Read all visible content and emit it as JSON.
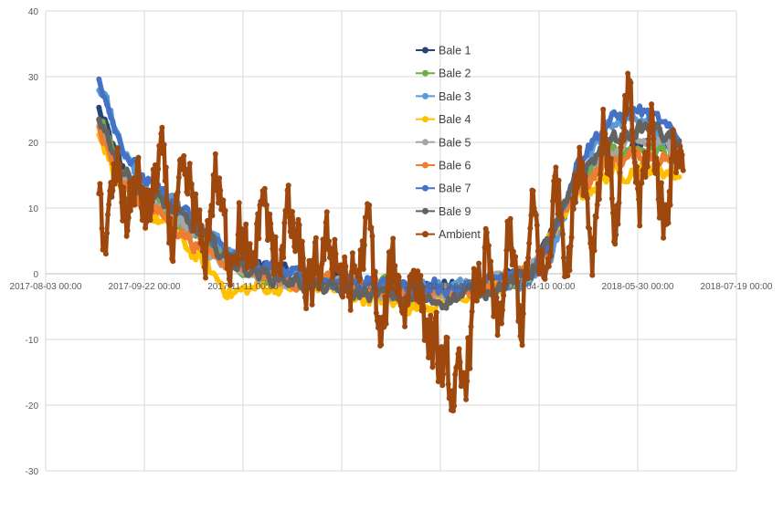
{
  "chart_data": {
    "type": "line",
    "title": "",
    "xlabel": "",
    "ylabel": "",
    "ylim": [
      -30,
      40
    ],
    "y_ticks": [
      40,
      30,
      20,
      10,
      0,
      -10,
      -20,
      -30
    ],
    "x_tick_labels": [
      "2017-08-03 00:00",
      "2017-09-22 00:00",
      "2017-11-11 00:00",
      "2017-12-31 00:00",
      "2018-02-19 00:00",
      "2018-04-10 00:00",
      "2018-05-30 00:00",
      "2018-07-19 00:00"
    ],
    "x_range": [
      "2017-08-03",
      "2018-07-19"
    ],
    "grid": true,
    "legend_position": "center-top",
    "series": [
      {
        "name": "Bale 1",
        "color": "#264478",
        "x": [
          "2017-08-30",
          "2017-09-05",
          "2017-09-10",
          "2017-09-20",
          "2017-10-05",
          "2017-10-20",
          "2017-11-05",
          "2017-11-20",
          "2017-12-05",
          "2017-12-20",
          "2018-01-05",
          "2018-01-20",
          "2018-02-05",
          "2018-02-20",
          "2018-03-05",
          "2018-03-20",
          "2018-04-05",
          "2018-04-12",
          "2018-04-20",
          "2018-05-01",
          "2018-05-15",
          "2018-05-30",
          "2018-06-10",
          "2018-06-20"
        ],
        "values": [
          25,
          20,
          16,
          13,
          10,
          6,
          2,
          1,
          0,
          -1,
          -1,
          -2,
          -2,
          -2,
          -2,
          -1,
          0,
          3,
          8,
          14,
          18,
          20,
          20,
          18
        ]
      },
      {
        "name": "Bale 2",
        "color": "#70AD47",
        "x": [
          "2017-08-30",
          "2017-09-05",
          "2017-09-10",
          "2017-09-20",
          "2017-10-05",
          "2017-10-20",
          "2017-11-05",
          "2017-11-20",
          "2017-12-05",
          "2017-12-20",
          "2018-01-05",
          "2018-01-20",
          "2018-02-05",
          "2018-02-20",
          "2018-03-05",
          "2018-03-20",
          "2018-04-05",
          "2018-04-12",
          "2018-04-20",
          "2018-05-01",
          "2018-05-15",
          "2018-05-30",
          "2018-06-10",
          "2018-06-20"
        ],
        "values": [
          24,
          19,
          15,
          12,
          9,
          5,
          2,
          0,
          -1,
          -1,
          -2,
          -2,
          -3,
          -3,
          -2,
          -1,
          0,
          3,
          8,
          14,
          18,
          19,
          19,
          17
        ]
      },
      {
        "name": "Bale 3",
        "color": "#5B9BD5",
        "x": [
          "2017-08-30",
          "2017-09-05",
          "2017-09-10",
          "2017-09-20",
          "2017-10-05",
          "2017-10-20",
          "2017-11-05",
          "2017-11-20",
          "2017-12-05",
          "2017-12-20",
          "2018-01-05",
          "2018-01-20",
          "2018-02-05",
          "2018-02-20",
          "2018-03-05",
          "2018-03-20",
          "2018-04-05",
          "2018-04-12",
          "2018-04-20",
          "2018-05-01",
          "2018-05-15",
          "2018-05-30",
          "2018-06-10",
          "2018-06-20"
        ],
        "values": [
          28,
          24,
          19,
          14,
          11,
          7,
          3,
          1,
          0,
          -1,
          -1,
          -2,
          -2,
          -2,
          -2,
          -1,
          -1,
          0,
          6,
          16,
          22,
          24,
          22,
          19
        ]
      },
      {
        "name": "Bale 4",
        "color": "#FFC000",
        "x": [
          "2017-08-30",
          "2017-09-05",
          "2017-09-10",
          "2017-09-20",
          "2017-10-05",
          "2017-10-20",
          "2017-11-05",
          "2017-11-20",
          "2017-12-05",
          "2017-12-20",
          "2018-01-05",
          "2018-01-20",
          "2018-02-05",
          "2018-02-20",
          "2018-03-05",
          "2018-03-20",
          "2018-04-05",
          "2018-04-12",
          "2018-04-20",
          "2018-05-01",
          "2018-05-15",
          "2018-05-30",
          "2018-06-10",
          "2018-06-20"
        ],
        "values": [
          22,
          17,
          13,
          10,
          7,
          2,
          -3,
          -2,
          -2,
          -2,
          -3,
          -4,
          -5,
          -4,
          -3,
          -2,
          0,
          3,
          8,
          12,
          15,
          16,
          16,
          15
        ]
      },
      {
        "name": "Bale 5",
        "color": "#A5A5A5",
        "x": [
          "2017-08-30",
          "2017-09-05",
          "2017-09-10",
          "2017-09-20",
          "2017-10-05",
          "2017-10-20",
          "2017-11-05",
          "2017-11-20",
          "2017-12-05",
          "2017-12-20",
          "2018-01-05",
          "2018-01-20",
          "2018-02-05",
          "2018-02-20",
          "2018-03-05",
          "2018-03-20",
          "2018-04-05",
          "2018-04-12",
          "2018-04-20",
          "2018-05-01",
          "2018-05-15",
          "2018-05-30",
          "2018-06-10",
          "2018-06-20"
        ],
        "values": [
          23,
          19,
          15,
          12,
          9,
          5,
          2,
          0,
          -1,
          -1,
          -2,
          -3,
          -3,
          -3,
          -2,
          -1,
          0,
          3,
          8,
          14,
          18,
          20,
          20,
          18
        ]
      },
      {
        "name": "Bale 6",
        "color": "#ED7D31",
        "x": [
          "2017-08-30",
          "2017-09-05",
          "2017-09-10",
          "2017-09-20",
          "2017-10-05",
          "2017-10-20",
          "2017-11-05",
          "2017-11-20",
          "2017-12-05",
          "2017-12-20",
          "2018-01-05",
          "2018-01-20",
          "2018-02-05",
          "2018-02-20",
          "2018-03-05",
          "2018-03-20",
          "2018-04-05",
          "2018-04-12",
          "2018-04-20",
          "2018-05-01",
          "2018-05-15",
          "2018-05-30",
          "2018-06-10",
          "2018-06-20"
        ],
        "values": [
          22,
          18,
          14,
          11,
          8,
          4,
          2,
          0,
          -1,
          -1,
          -2,
          -2,
          -3,
          -3,
          -2,
          -1,
          0,
          3,
          8,
          13,
          17,
          18,
          18,
          17
        ]
      },
      {
        "name": "Bale 7",
        "color": "#4472C4",
        "x": [
          "2017-08-30",
          "2017-09-05",
          "2017-09-10",
          "2017-09-20",
          "2017-10-05",
          "2017-10-20",
          "2017-11-05",
          "2017-11-20",
          "2017-12-05",
          "2017-12-20",
          "2018-01-05",
          "2018-01-20",
          "2018-02-05",
          "2018-02-20",
          "2018-03-05",
          "2018-03-20",
          "2018-04-05",
          "2018-04-12",
          "2018-04-20",
          "2018-05-01",
          "2018-05-15",
          "2018-05-30",
          "2018-06-10",
          "2018-06-20"
        ],
        "values": [
          30,
          25,
          20,
          15,
          11,
          7,
          3,
          1,
          0,
          -1,
          -1,
          -2,
          -2,
          -2,
          -2,
          -1,
          0,
          3,
          9,
          18,
          23,
          25,
          23,
          20
        ]
      },
      {
        "name": "Bale 9",
        "color": "#636363",
        "x": [
          "2017-08-30",
          "2017-09-05",
          "2017-09-10",
          "2017-09-20",
          "2017-10-05",
          "2017-10-20",
          "2017-11-05",
          "2017-11-20",
          "2017-12-05",
          "2017-12-20",
          "2018-01-05",
          "2018-01-20",
          "2018-02-05",
          "2018-02-20",
          "2018-03-05",
          "2018-03-20",
          "2018-04-05",
          "2018-04-12",
          "2018-04-20",
          "2018-05-01",
          "2018-05-15",
          "2018-05-30",
          "2018-06-10",
          "2018-06-20"
        ],
        "values": [
          24,
          20,
          16,
          13,
          10,
          6,
          2,
          0,
          -1,
          -2,
          -3,
          -3,
          -4,
          -4,
          -3,
          -2,
          0,
          3,
          8,
          15,
          20,
          22,
          22,
          19
        ]
      },
      {
        "name": "Ambient",
        "color": "#9E480E",
        "x": [
          "2017-08-30",
          "2017-09-03",
          "2017-09-08",
          "2017-09-13",
          "2017-09-18",
          "2017-09-24",
          "2017-09-30",
          "2017-10-06",
          "2017-10-10",
          "2017-10-16",
          "2017-10-22",
          "2017-10-28",
          "2017-11-03",
          "2017-11-09",
          "2017-11-15",
          "2017-11-21",
          "2017-11-27",
          "2017-12-03",
          "2017-12-09",
          "2017-12-15",
          "2017-12-21",
          "2017-12-27",
          "2018-01-02",
          "2018-01-08",
          "2018-01-14",
          "2018-01-20",
          "2018-01-26",
          "2018-02-01",
          "2018-02-06",
          "2018-02-12",
          "2018-02-18",
          "2018-02-24",
          "2018-03-02",
          "2018-03-08",
          "2018-03-14",
          "2018-03-20",
          "2018-03-26",
          "2018-04-01",
          "2018-04-07",
          "2018-04-13",
          "2018-04-19",
          "2018-04-25",
          "2018-05-01",
          "2018-05-07",
          "2018-05-13",
          "2018-05-19",
          "2018-05-25",
          "2018-05-31",
          "2018-06-06",
          "2018-06-12",
          "2018-06-18",
          "2018-06-22"
        ],
        "values": [
          12,
          5,
          16,
          9,
          14,
          8,
          18,
          5,
          11,
          12,
          1,
          16,
          3,
          8,
          -2,
          13,
          0,
          9,
          3,
          -4,
          2,
          5,
          -3,
          0,
          7,
          -12,
          2,
          -5,
          2,
          -8,
          -14,
          -17,
          -19,
          -5,
          3,
          -10,
          5,
          -8,
          9,
          -2,
          15,
          2,
          21,
          4,
          24,
          6,
          27,
          10,
          23,
          8,
          20,
          17
        ]
      }
    ]
  }
}
